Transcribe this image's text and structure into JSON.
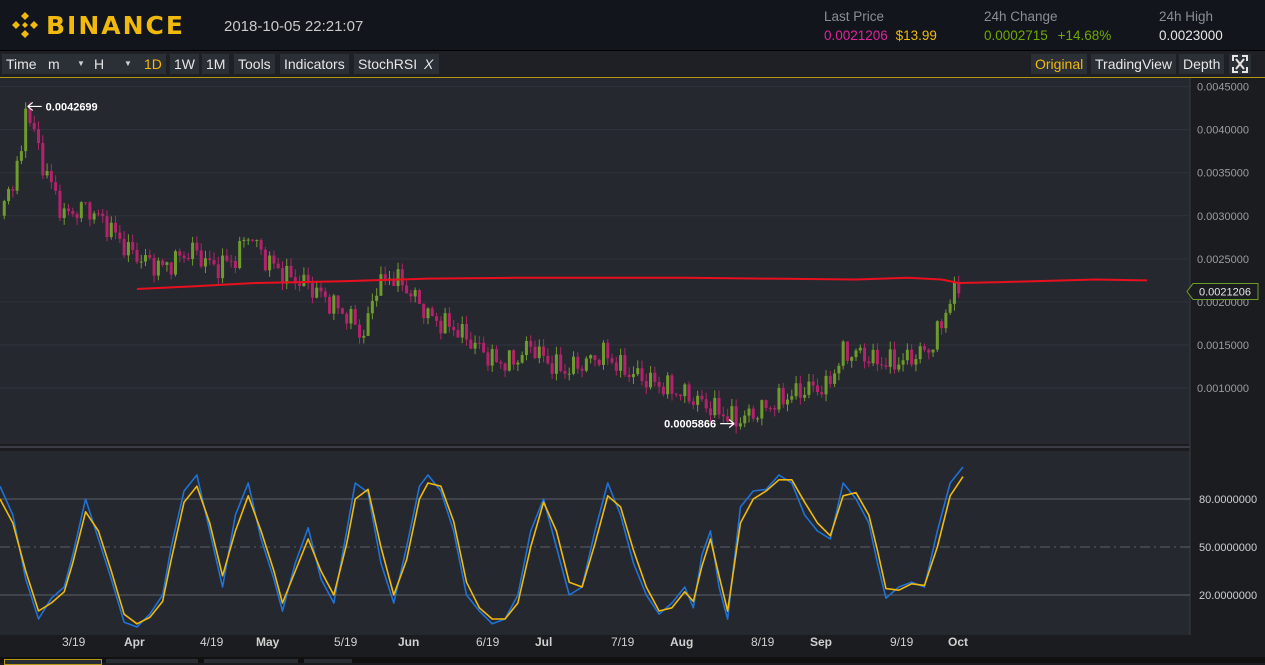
{
  "header": {
    "logo_text": "BINANCE",
    "timestamp": "2018-10-05 22:21:07",
    "last_price_label": "Last Price",
    "last_price": "0.0021206",
    "last_price_usd": "$13.99",
    "change_label": "24h Change",
    "change_value": "0.0002715",
    "change_pct": "+14.68%",
    "high_label": "24h High",
    "high_value": "0.0023000"
  },
  "toolbar": {
    "time": "Time",
    "m": "m",
    "h": "H",
    "d1": "1D",
    "w1": "1W",
    "mo1": "1M",
    "tools": "Tools",
    "indicators": "Indicators",
    "stochrsi": "StochRSI",
    "close_x": "X",
    "original": "Original",
    "tradingview": "TradingView",
    "depth": "Depth",
    "fullscreen_icon": "fullscreen-icon"
  },
  "colors": {
    "up": "#6e9c2c",
    "down": "#b3226b",
    "ma": "#e8101f",
    "stoch_k": "#1e72d6",
    "stoch_d": "#f0b90b",
    "accent": "#f0b90b",
    "bg": "#1b1c1f"
  },
  "chart_data": [
    {
      "type": "candlestick",
      "ylim": [
        0.00035,
        0.0046
      ],
      "yticks": [
        "0.0010000",
        "0.0015000",
        "0.0020000",
        "0.0025000",
        "0.0030000",
        "0.0035000",
        "0.0040000",
        "0.0045000"
      ],
      "x_ticks": [
        "3/19",
        "Apr",
        "4/19",
        "May",
        "5/19",
        "Jun",
        "6/19",
        "Jul",
        "7/19",
        "Aug",
        "8/19",
        "Sep",
        "9/19",
        "Oct"
      ],
      "current_price_label": "0.0021206",
      "high_annotation": "0.0042699",
      "low_annotation": "0.0005866",
      "close_path": [
        [
          0,
          0.003
        ],
        [
          5,
          0.0037
        ],
        [
          6,
          0.0043
        ],
        [
          10,
          0.0036
        ],
        [
          15,
          0.003
        ],
        [
          20,
          0.0031
        ],
        [
          25,
          0.0029
        ],
        [
          30,
          0.0026
        ],
        [
          33,
          0.0025
        ],
        [
          38,
          0.0024
        ],
        [
          45,
          0.0026
        ],
        [
          50,
          0.0024
        ],
        [
          55,
          0.0025
        ],
        [
          58,
          0.0028
        ],
        [
          62,
          0.0025
        ],
        [
          67,
          0.0023
        ],
        [
          72,
          0.0022
        ],
        [
          77,
          0.002
        ],
        [
          82,
          0.0018
        ],
        [
          85,
          0.0016
        ],
        [
          88,
          0.0022
        ],
        [
          92,
          0.0023
        ],
        [
          96,
          0.0021
        ],
        [
          101,
          0.0018
        ],
        [
          106,
          0.0017
        ],
        [
          111,
          0.0015
        ],
        [
          116,
          0.0013
        ],
        [
          120,
          0.0013
        ],
        [
          124,
          0.0015
        ],
        [
          128,
          0.0013
        ],
        [
          132,
          0.0012
        ],
        [
          137,
          0.0013
        ],
        [
          141,
          0.0014
        ],
        [
          146,
          0.0012
        ],
        [
          151,
          0.0011
        ],
        [
          156,
          0.001
        ],
        [
          161,
          0.0009
        ],
        [
          165,
          0.0008
        ],
        [
          169,
          0.0007
        ],
        [
          172,
          0.00062
        ],
        [
          176,
          0.0007
        ],
        [
          180,
          0.0008
        ],
        [
          184,
          0.0009
        ],
        [
          189,
          0.001
        ],
        [
          193,
          0.001
        ],
        [
          197,
          0.0014
        ],
        [
          201,
          0.0014
        ],
        [
          205,
          0.0013
        ],
        [
          210,
          0.0013
        ],
        [
          215,
          0.0014
        ],
        [
          218,
          0.0015
        ],
        [
          221,
          0.0019
        ],
        [
          224,
          0.0022
        ]
      ],
      "ma_line": [
        [
          32,
          0.00215
        ],
        [
          45,
          0.00218
        ],
        [
          60,
          0.00222
        ],
        [
          80,
          0.00224
        ],
        [
          100,
          0.00227
        ],
        [
          120,
          0.00228
        ],
        [
          140,
          0.00228
        ],
        [
          160,
          0.00228
        ],
        [
          180,
          0.00227
        ],
        [
          200,
          0.00226
        ],
        [
          212,
          0.00228
        ],
        [
          220,
          0.00226
        ],
        [
          224,
          0.00222
        ],
        [
          234,
          0.00223
        ],
        [
          256,
          0.00226
        ],
        [
          268,
          0.00225
        ]
      ]
    },
    {
      "type": "line",
      "title": "StochRSI",
      "ylim": [
        -5,
        110
      ],
      "yticks": [
        "20.0000000",
        "50.0000000",
        "80.0000000"
      ],
      "levels": [
        20,
        50,
        80
      ],
      "series": [
        {
          "key": "k",
          "values": [
            [
              0,
              88
            ],
            [
              3,
              70
            ],
            [
              6,
              30
            ],
            [
              9,
              5
            ],
            [
              12,
              18
            ],
            [
              15,
              25
            ],
            [
              17,
              45
            ],
            [
              20,
              80
            ],
            [
              23,
              55
            ],
            [
              26,
              30
            ],
            [
              29,
              3
            ],
            [
              32,
              0
            ],
            [
              35,
              8
            ],
            [
              38,
              20
            ],
            [
              40,
              50
            ],
            [
              43,
              85
            ],
            [
              46,
              95
            ],
            [
              49,
              60
            ],
            [
              52,
              25
            ],
            [
              55,
              70
            ],
            [
              58,
              90
            ],
            [
              61,
              55
            ],
            [
              64,
              30
            ],
            [
              66,
              10
            ],
            [
              69,
              40
            ],
            [
              72,
              62
            ],
            [
              75,
              30
            ],
            [
              78,
              15
            ],
            [
              81,
              60
            ],
            [
              83,
              90
            ],
            [
              86,
              84
            ],
            [
              89,
              40
            ],
            [
              92,
              15
            ],
            [
              95,
              50
            ],
            [
              98,
              88
            ],
            [
              100,
              95
            ],
            [
              103,
              85
            ],
            [
              106,
              60
            ],
            [
              109,
              20
            ],
            [
              112,
              10
            ],
            [
              115,
              2
            ],
            [
              118,
              5
            ],
            [
              121,
              20
            ],
            [
              124,
              60
            ],
            [
              127,
              80
            ],
            [
              130,
              50
            ],
            [
              133,
              20
            ],
            [
              136,
              25
            ],
            [
              139,
              60
            ],
            [
              142,
              90
            ],
            [
              145,
              70
            ],
            [
              148,
              40
            ],
            [
              151,
              20
            ],
            [
              154,
              8
            ],
            [
              157,
              15
            ],
            [
              160,
              25
            ],
            [
              162,
              12
            ],
            [
              164,
              45
            ],
            [
              166,
              60
            ],
            [
              168,
              25
            ],
            [
              170,
              5
            ],
            [
              173,
              75
            ],
            [
              176,
              85
            ],
            [
              179,
              86
            ],
            [
              182,
              95
            ],
            [
              185,
              90
            ],
            [
              188,
              70
            ],
            [
              191,
              60
            ],
            [
              194,
              55
            ],
            [
              197,
              90
            ],
            [
              200,
              80
            ],
            [
              203,
              65
            ],
            [
              205,
              40
            ],
            [
              207,
              18
            ],
            [
              210,
              25
            ],
            [
              213,
              28
            ],
            [
              216,
              25
            ],
            [
              219,
              60
            ],
            [
              222,
              90
            ],
            [
              225,
              100
            ]
          ]
        },
        {
          "key": "d",
          "values": [
            [
              0,
              80
            ],
            [
              3,
              65
            ],
            [
              6,
              35
            ],
            [
              9,
              10
            ],
            [
              12,
              15
            ],
            [
              15,
              22
            ],
            [
              17,
              40
            ],
            [
              20,
              72
            ],
            [
              23,
              60
            ],
            [
              26,
              35
            ],
            [
              29,
              8
            ],
            [
              32,
              2
            ],
            [
              35,
              6
            ],
            [
              38,
              16
            ],
            [
              40,
              42
            ],
            [
              43,
              78
            ],
            [
              46,
              88
            ],
            [
              49,
              65
            ],
            [
              52,
              32
            ],
            [
              55,
              60
            ],
            [
              58,
              82
            ],
            [
              61,
              60
            ],
            [
              64,
              35
            ],
            [
              66,
              15
            ],
            [
              69,
              35
            ],
            [
              72,
              55
            ],
            [
              75,
              35
            ],
            [
              78,
              20
            ],
            [
              81,
              52
            ],
            [
              83,
              80
            ],
            [
              86,
              86
            ],
            [
              89,
              50
            ],
            [
              92,
              20
            ],
            [
              95,
              42
            ],
            [
              98,
              80
            ],
            [
              100,
              90
            ],
            [
              103,
              88
            ],
            [
              106,
              66
            ],
            [
              109,
              28
            ],
            [
              112,
              12
            ],
            [
              115,
              5
            ],
            [
              118,
              5
            ],
            [
              121,
              15
            ],
            [
              124,
              50
            ],
            [
              127,
              78
            ],
            [
              130,
              60
            ],
            [
              133,
              28
            ],
            [
              136,
              25
            ],
            [
              139,
              52
            ],
            [
              142,
              82
            ],
            [
              145,
              75
            ],
            [
              148,
              48
            ],
            [
              151,
              25
            ],
            [
              154,
              10
            ],
            [
              157,
              12
            ],
            [
              160,
              22
            ],
            [
              162,
              16
            ],
            [
              164,
              38
            ],
            [
              166,
              55
            ],
            [
              168,
              32
            ],
            [
              170,
              10
            ],
            [
              173,
              65
            ],
            [
              176,
              80
            ],
            [
              179,
              85
            ],
            [
              182,
              92
            ],
            [
              185,
              92
            ],
            [
              188,
              78
            ],
            [
              191,
              65
            ],
            [
              194,
              57
            ],
            [
              197,
              82
            ],
            [
              200,
              84
            ],
            [
              203,
              70
            ],
            [
              205,
              48
            ],
            [
              207,
              24
            ],
            [
              210,
              23
            ],
            [
              213,
              27
            ],
            [
              216,
              26
            ],
            [
              219,
              50
            ],
            [
              222,
              82
            ],
            [
              225,
              94
            ]
          ]
        }
      ]
    }
  ]
}
